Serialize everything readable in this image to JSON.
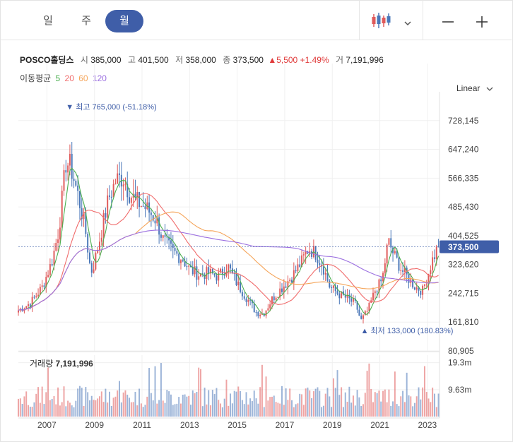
{
  "tabs": [
    {
      "label": "일",
      "active": false
    },
    {
      "label": "주",
      "active": false
    },
    {
      "label": "월",
      "active": true
    }
  ],
  "toolbar": {
    "chart_type_icon": "candlestick-icon",
    "dropdown_icon": "chevron-down-icon",
    "zoom_out_icon": "minus-icon",
    "zoom_in_icon": "plus-icon"
  },
  "info": {
    "name": "POSCO홀딩스",
    "open_label": "시",
    "open": "385,000",
    "high_label": "고",
    "high": "401,500",
    "low_label": "저",
    "low": "358,000",
    "close_label": "종",
    "close": "373,500",
    "change_arrow": "▲",
    "change": "5,500",
    "change_pct": "+1.49%",
    "volume_label": "거",
    "volume": "7,191,996"
  },
  "moving_avg": {
    "label": "이동평균",
    "periods": [
      {
        "value": "5",
        "color": "#4caf50"
      },
      {
        "value": "20",
        "color": "#f06b6b"
      },
      {
        "value": "60",
        "color": "#f5a55a"
      },
      {
        "value": "120",
        "color": "#9b6fe0"
      }
    ]
  },
  "scale_label": "Linear",
  "scale_icon": "chevron-down-icon",
  "volume_panel": {
    "label": "거래량",
    "value": "7,191,996"
  },
  "colors": {
    "up": "#e05a5a",
    "down": "#4a77b8",
    "accent": "#3f5ea8",
    "grid": "#f0f0f0"
  },
  "chart_data": {
    "type": "candlestick",
    "y_ticks": [
      "728,145",
      "647,240",
      "566,335",
      "485,430",
      "404,525",
      "323,620",
      "242,715",
      "161,810",
      "80,905"
    ],
    "y_tick_values": [
      728145,
      647240,
      566335,
      485430,
      404525,
      323620,
      242715,
      161810,
      80905
    ],
    "ylim": [
      80905,
      809050
    ],
    "x_ticks": [
      "2007",
      "2009",
      "2011",
      "2013",
      "2015",
      "2017",
      "2019",
      "2021",
      "2023"
    ],
    "current_price_label": "373,500",
    "current_price": 373500,
    "max_annotation": {
      "arrow": "▼",
      "text": "최고 765,000 (-51.18%)",
      "value": 765000,
      "year": 2007.8
    },
    "min_annotation": {
      "arrow": "▲",
      "text": "최저 133,000 (180.83%)",
      "value": 133000,
      "year": 2020.2
    },
    "x_range": [
      2005.8,
      2023.45
    ],
    "anchors": [
      [
        2005.8,
        195000
      ],
      [
        2006.3,
        215000
      ],
      [
        2006.8,
        260000
      ],
      [
        2007.2,
        330000
      ],
      [
        2007.5,
        420000
      ],
      [
        2007.8,
        610000
      ],
      [
        2008.0,
        600000
      ],
      [
        2008.3,
        520000
      ],
      [
        2008.6,
        430000
      ],
      [
        2008.85,
        300000
      ],
      [
        2009.0,
        330000
      ],
      [
        2009.3,
        420000
      ],
      [
        2009.6,
        510000
      ],
      [
        2009.9,
        560000
      ],
      [
        2010.2,
        570000
      ],
      [
        2010.5,
        520000
      ],
      [
        2010.8,
        500000
      ],
      [
        2011.2,
        480000
      ],
      [
        2011.6,
        450000
      ],
      [
        2011.9,
        390000
      ],
      [
        2012.3,
        360000
      ],
      [
        2012.7,
        340000
      ],
      [
        2013.0,
        310000
      ],
      [
        2013.4,
        295000
      ],
      [
        2013.8,
        300000
      ],
      [
        2014.2,
        290000
      ],
      [
        2014.6,
        320000
      ],
      [
        2015.0,
        270000
      ],
      [
        2015.4,
        230000
      ],
      [
        2015.8,
        190000
      ],
      [
        2016.1,
        185000
      ],
      [
        2016.5,
        230000
      ],
      [
        2016.9,
        260000
      ],
      [
        2017.3,
        290000
      ],
      [
        2017.7,
        330000
      ],
      [
        2018.0,
        370000
      ],
      [
        2018.3,
        355000
      ],
      [
        2018.6,
        320000
      ],
      [
        2018.9,
        260000
      ],
      [
        2019.3,
        240000
      ],
      [
        2019.7,
        225000
      ],
      [
        2020.0,
        210000
      ],
      [
        2020.2,
        165000
      ],
      [
        2020.5,
        195000
      ],
      [
        2020.8,
        250000
      ],
      [
        2021.1,
        280000
      ],
      [
        2021.35,
        390000
      ],
      [
        2021.6,
        350000
      ],
      [
        2021.9,
        310000
      ],
      [
        2022.2,
        285000
      ],
      [
        2022.5,
        260000
      ],
      [
        2022.8,
        250000
      ],
      [
        2023.0,
        290000
      ],
      [
        2023.2,
        335000
      ],
      [
        2023.45,
        373500
      ]
    ],
    "ma_periods": [
      5,
      20,
      60,
      120
    ],
    "volume_ticks": [
      "19.3m",
      "9.63m"
    ],
    "volume_tick_values": [
      19300000,
      9630000
    ],
    "volume_max": 22000000
  }
}
